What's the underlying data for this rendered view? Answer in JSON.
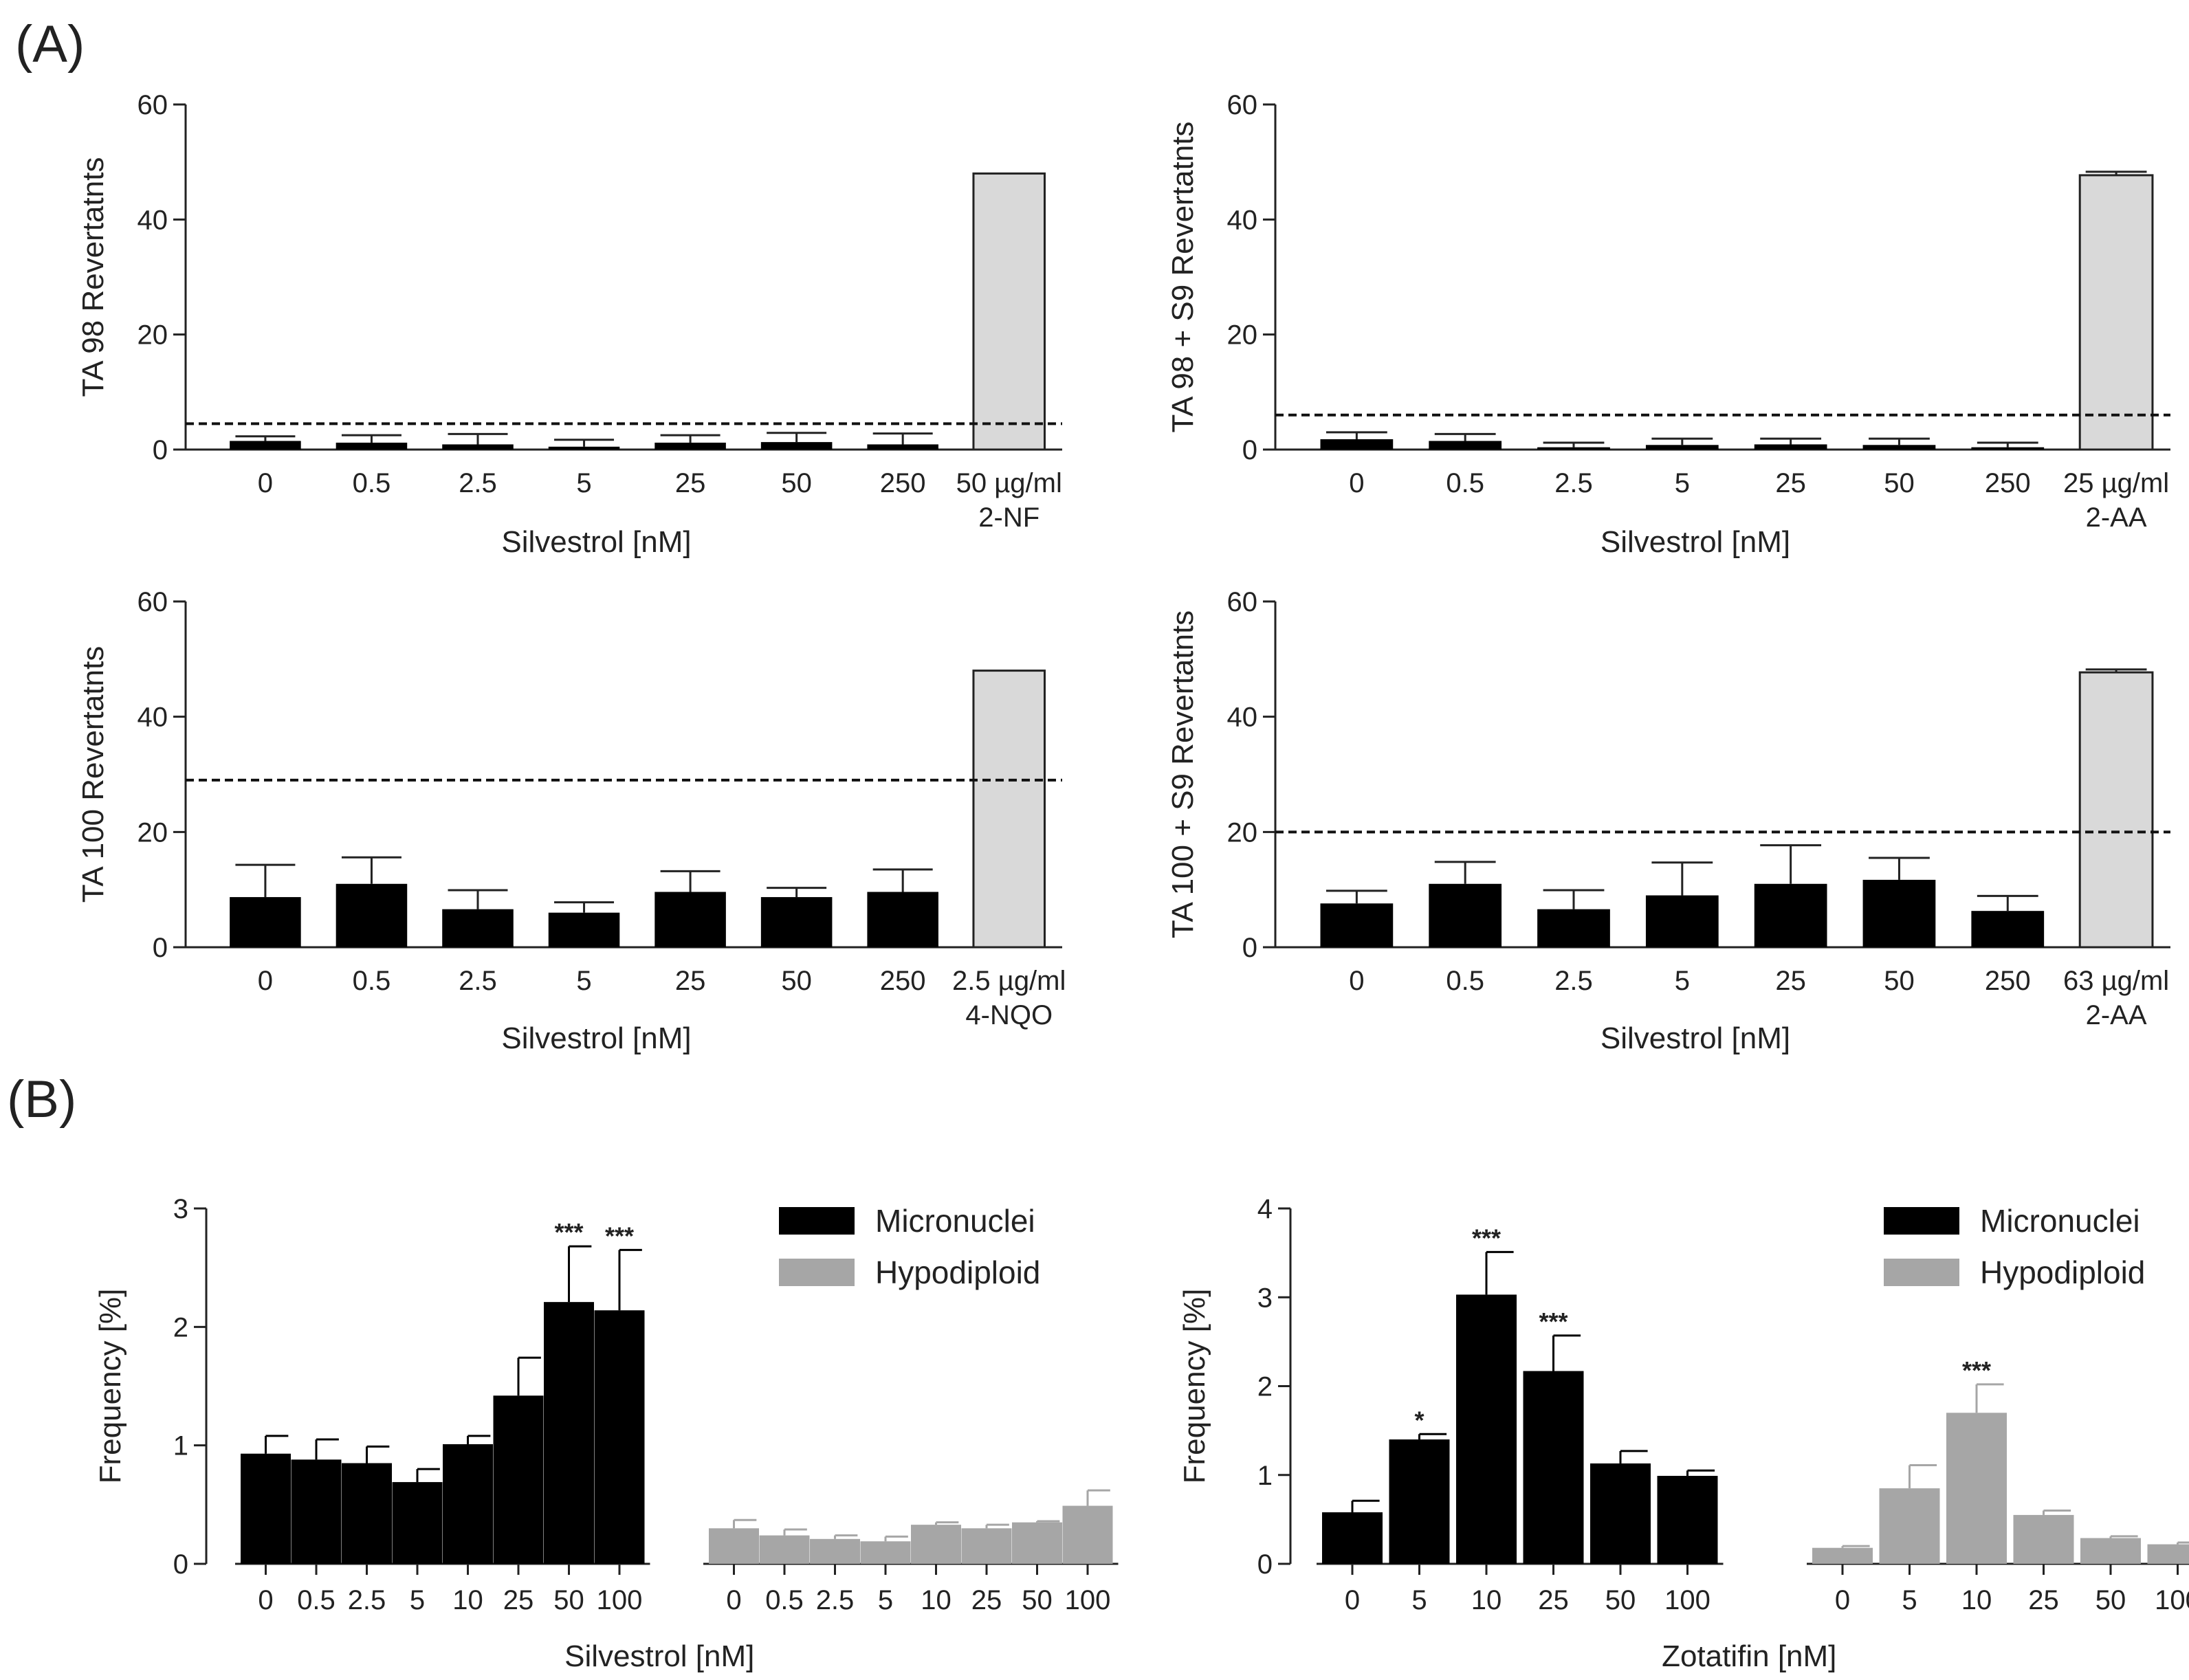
{
  "panel_labels": {
    "a": "(A)",
    "b": "(B)"
  },
  "colors": {
    "black_bar": "#000000",
    "light_bar": "#d9d9d9",
    "gray_bar": "#a6a6a6",
    "axis": "#222222"
  },
  "chart_data": [
    {
      "type": "bar",
      "ylabel": "TA 98 Revertatnts",
      "xlabel": "Silvestrol [nM]",
      "ylim": [
        0,
        60
      ],
      "yticks": [
        0,
        20,
        40,
        60
      ],
      "categories": [
        "0",
        "0.5",
        "2.5",
        "5",
        "25",
        "50",
        "250",
        "50 µg/ml|2-NF"
      ],
      "values": [
        1.5,
        1.2,
        0.9,
        0.5,
        1.2,
        1.3,
        0.9,
        48
      ],
      "errors": [
        0.8,
        1.3,
        1.8,
        1.2,
        1.3,
        1.6,
        1.9,
        0
      ],
      "control_index": 7,
      "threshold": 4.5
    },
    {
      "type": "bar",
      "ylabel": "TA 98 + S9 Revertatnts",
      "xlabel": "Silvestrol [nM]",
      "ylim": [
        0,
        60
      ],
      "yticks": [
        0,
        20,
        40,
        60
      ],
      "categories": [
        "0",
        "0.5",
        "2.5",
        "5",
        "25",
        "50",
        "250",
        "25 µg/ml|2-AA"
      ],
      "values": [
        1.8,
        1.5,
        0.4,
        0.8,
        0.9,
        0.8,
        0.4,
        47.7
      ],
      "errors": [
        1.2,
        1.2,
        0.8,
        1.1,
        1.0,
        1.1,
        0.8,
        0.6
      ],
      "control_index": 7,
      "threshold": 6
    },
    {
      "type": "bar",
      "ylabel": "TA 100 Revertatnts",
      "xlabel": "Silvestrol [nM]",
      "ylim": [
        0,
        60
      ],
      "yticks": [
        0,
        20,
        40,
        60
      ],
      "categories": [
        "0",
        "0.5",
        "2.5",
        "5",
        "25",
        "50",
        "250",
        "2.5 µg/ml|4-NQO"
      ],
      "values": [
        8.7,
        11,
        6.6,
        6,
        9.6,
        8.7,
        9.6,
        48
      ],
      "errors": [
        5.6,
        4.6,
        3.3,
        1.8,
        3.6,
        1.6,
        3.9,
        0
      ],
      "control_index": 7,
      "threshold": 29
    },
    {
      "type": "bar",
      "ylabel": "TA 100 + S9 Revertatnts",
      "xlabel": "Silvestrol [nM]",
      "ylim": [
        0,
        60
      ],
      "yticks": [
        0,
        20,
        40,
        60
      ],
      "categories": [
        "0",
        "0.5",
        "2.5",
        "5",
        "25",
        "50",
        "250",
        "63 µg/ml|2-AA"
      ],
      "values": [
        7.6,
        11,
        6.6,
        9,
        11,
        11.7,
        6.3,
        47.7
      ],
      "errors": [
        2.2,
        3.8,
        3.3,
        5.7,
        6.7,
        3.8,
        2.6,
        0.5
      ],
      "control_index": 7,
      "threshold": 20
    },
    {
      "type": "bar",
      "ylabel": "Frequency [%]",
      "xlabel": "Silvestrol [nM]",
      "ylim": [
        0,
        3
      ],
      "yticks": [
        0,
        1,
        2,
        3
      ],
      "categories": [
        "0",
        "0.5",
        "2.5",
        "5",
        "10",
        "25",
        "50",
        "100"
      ],
      "series": [
        {
          "name": "Micronuclei",
          "values": [
            0.93,
            0.88,
            0.85,
            0.69,
            1.01,
            1.42,
            2.21,
            2.14
          ],
          "errors": [
            0.15,
            0.17,
            0.14,
            0.11,
            0.07,
            0.32,
            0.47,
            0.51
          ],
          "stars": [
            "",
            "",
            "",
            "",
            "",
            "",
            "***",
            "***"
          ]
        },
        {
          "name": "Hypodiploid",
          "values": [
            0.3,
            0.24,
            0.21,
            0.19,
            0.33,
            0.3,
            0.35,
            0.49
          ],
          "errors": [
            0.07,
            0.05,
            0.03,
            0.04,
            0.02,
            0.03,
            0.01,
            0.13
          ],
          "stars": [
            "",
            "",
            "",
            "",
            "",
            "",
            "",
            ""
          ]
        }
      ],
      "legend": "top-right"
    },
    {
      "type": "bar",
      "ylabel": "Frequency [%]",
      "xlabel": "Zotatifin [nM]",
      "ylim": [
        0,
        4
      ],
      "yticks": [
        0,
        1,
        2,
        3,
        4
      ],
      "categories": [
        "0",
        "5",
        "10",
        "25",
        "50",
        "100"
      ],
      "series": [
        {
          "name": "Micronuclei",
          "values": [
            0.58,
            1.4,
            3.03,
            2.17,
            1.13,
            0.99
          ],
          "errors": [
            0.13,
            0.06,
            0.48,
            0.4,
            0.14,
            0.06
          ],
          "stars": [
            "",
            "*",
            "***",
            "***",
            "",
            ""
          ]
        },
        {
          "name": "Hypodiploid",
          "values": [
            0.18,
            0.85,
            1.7,
            0.55,
            0.29,
            0.22
          ],
          "errors": [
            0.02,
            0.26,
            0.32,
            0.05,
            0.02,
            0.02
          ],
          "stars": [
            "",
            "",
            "***",
            "",
            "",
            ""
          ]
        }
      ],
      "legend": "top-right"
    }
  ]
}
